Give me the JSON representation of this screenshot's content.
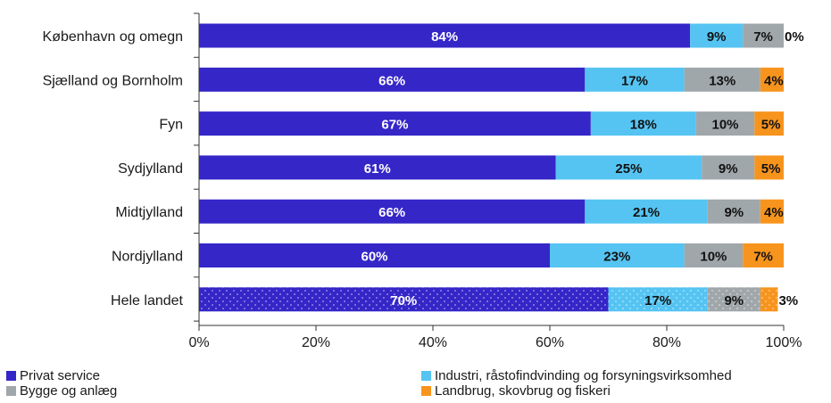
{
  "chart_data": {
    "type": "bar",
    "orientation": "horizontal",
    "stacked": true,
    "categories": [
      "København og omegn",
      "Sjælland og Bornholm",
      "Fyn",
      "Sydjylland",
      "Midtjylland",
      "Nordjylland",
      "Hele landet"
    ],
    "series": [
      {
        "name": "Privat service",
        "color": "#3526c8",
        "values": [
          84,
          66,
          67,
          61,
          66,
          60,
          70
        ],
        "labels": [
          "84%",
          "66%",
          "67%",
          "61%",
          "66%",
          "60%",
          "70%"
        ]
      },
      {
        "name": "Industri, råstofindvinding og forsyningsvirksomhed",
        "color": "#55c4f2",
        "values": [
          9,
          17,
          18,
          25,
          21,
          23,
          17
        ],
        "labels": [
          "9%",
          "17%",
          "18%",
          "25%",
          "21%",
          "23%",
          "17%"
        ]
      },
      {
        "name": "Bygge og anlæg",
        "color": "#a0a7ab",
        "values": [
          7,
          13,
          10,
          9,
          9,
          10,
          9
        ],
        "labels": [
          "7%",
          "13%",
          "10%",
          "9%",
          "9%",
          "10%",
          "9%"
        ]
      },
      {
        "name": "Landbrug, skovbrug og fiskeri",
        "color": "#f7941d",
        "values": [
          0,
          4,
          5,
          5,
          4,
          7,
          3
        ],
        "labels": [
          "0%",
          "4%",
          "5%",
          "5%",
          "4%",
          "7%",
          "3%"
        ]
      }
    ],
    "highlight_category": "Hele landet",
    "xticks": [
      "0%",
      "20%",
      "40%",
      "60%",
      "80%",
      "100%"
    ],
    "xlim": [
      0,
      100
    ],
    "grid": false,
    "legend_position": "bottom"
  }
}
